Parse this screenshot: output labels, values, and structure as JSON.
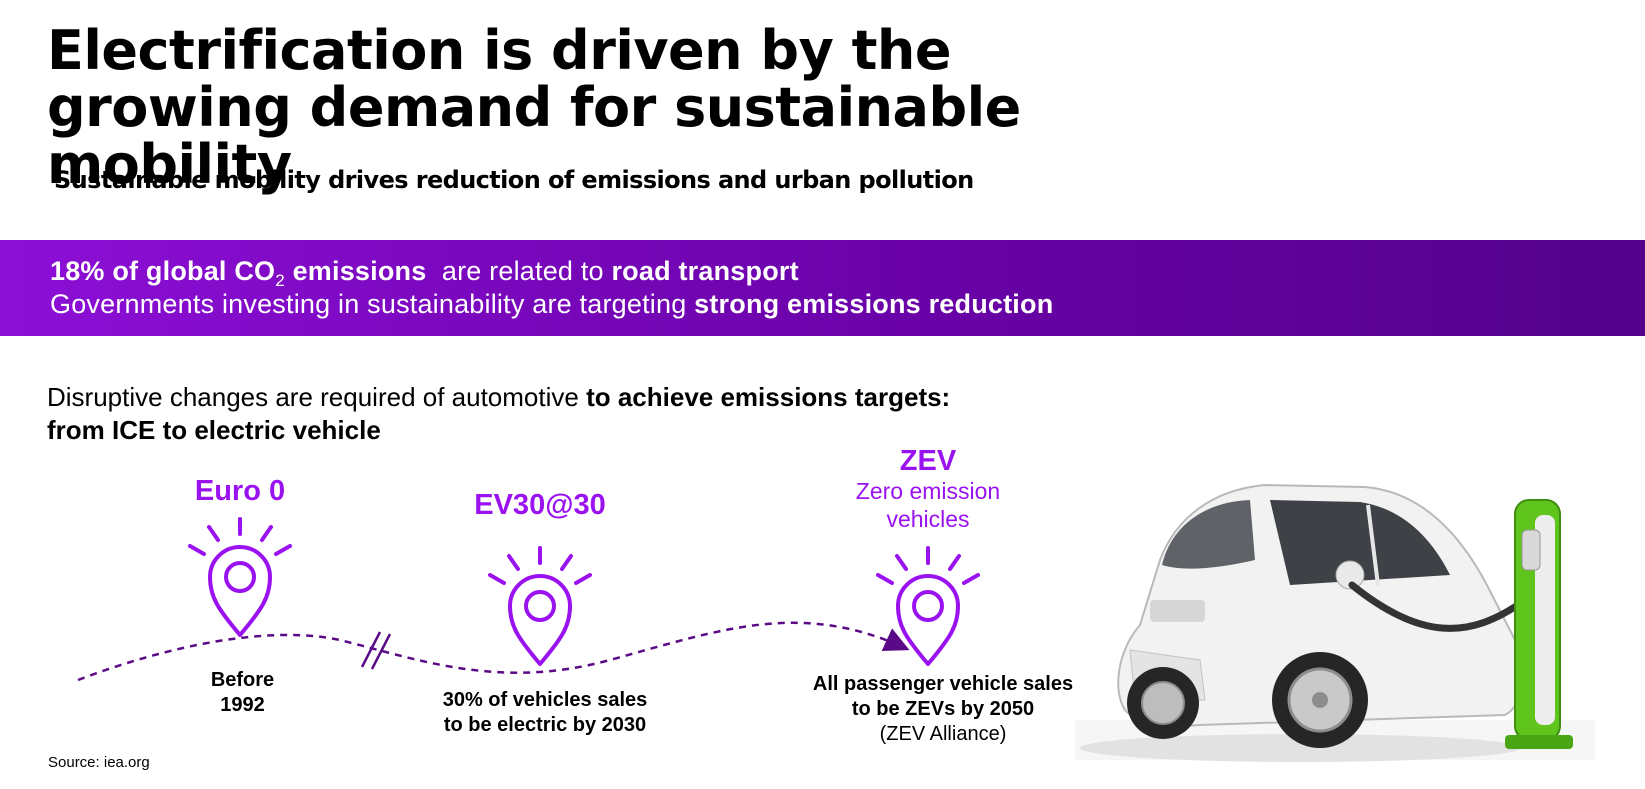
{
  "title": "Electrification is driven by the growing demand for sustainable mobility",
  "subtitle": "Sustainable mobility drives reduction of emissions and urban pollution",
  "banner": {
    "line1_bold_a": "18% of global CO",
    "line1_sub": "2",
    "line1_bold_b": " emissions",
    "line1_mid": "  are related to ",
    "line1_bold_c": "road transport",
    "line2_plain": "Governments investing in sustainability are targeting ",
    "line2_bold": "strong emissions reduction",
    "colors": {
      "start": "#8c0fd6",
      "end": "#52028a"
    }
  },
  "intro": {
    "plain": "Disruptive changes are required of automotive ",
    "bold": "to achieve emissions targets: from ICE to electric vehicle"
  },
  "milestones": [
    {
      "label": "Euro 0",
      "caption_line1": "Before",
      "caption_line2": "1992",
      "icon": "location-pin-icon"
    },
    {
      "label": "EV30@30",
      "caption_line1": "30% of vehicles sales",
      "caption_line2": "to be electric by 2030",
      "icon": "location-pin-icon"
    },
    {
      "label": "ZEV",
      "description_line1": "Zero emission",
      "description_line2": "vehicles",
      "caption_line1": "All passenger vehicle sales",
      "caption_line2": "to be ZEVs by 2050",
      "caption_note": "(ZEV Alliance)",
      "icon": "location-pin-icon"
    }
  ],
  "accent_color": "#9a12f0",
  "image": "electric-car-charging",
  "source": "Source: iea.org"
}
